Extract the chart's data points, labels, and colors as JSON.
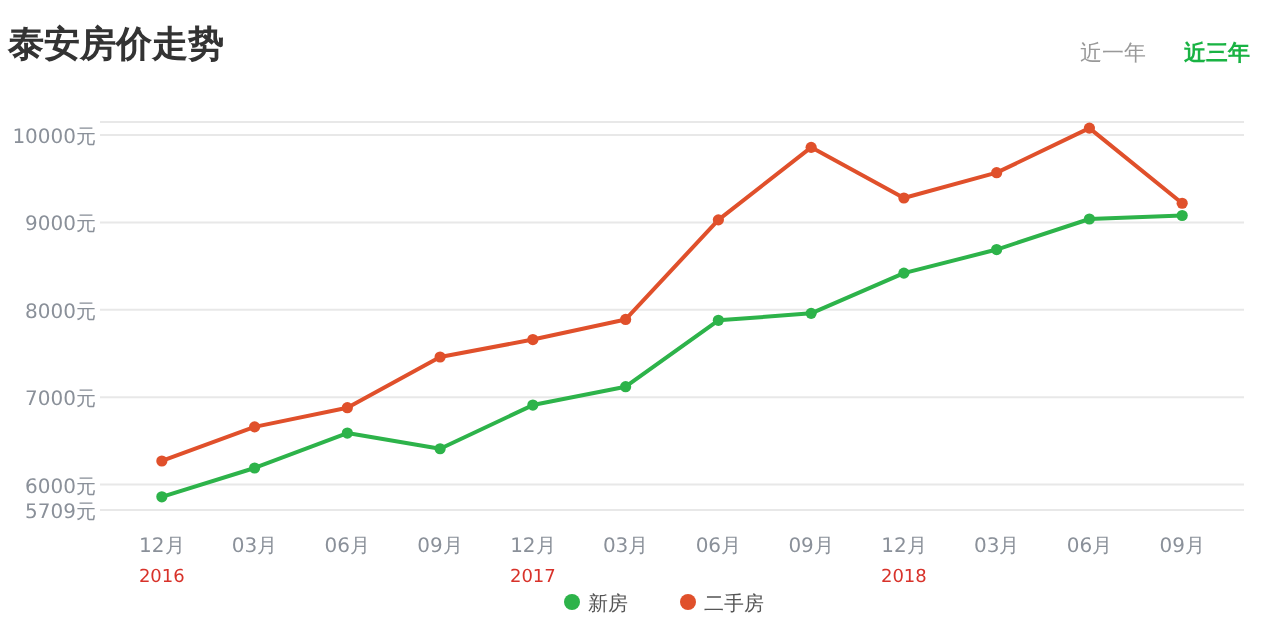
{
  "chart_data": {
    "type": "line",
    "title": "泰安房价走势",
    "x": [
      "2016-12",
      "2017-03",
      "2017-06",
      "2017-09",
      "2017-12",
      "2018-03",
      "2018-06",
      "2018-09",
      "2018-12",
      "2019-03",
      "2019-06",
      "2019-09"
    ],
    "xlim": [
      "2016-10",
      "2019-11"
    ],
    "xticks": [
      {
        "value": "2016-12",
        "label": "12月"
      },
      {
        "value": "2017-03",
        "label": "03月"
      },
      {
        "value": "2017-06",
        "label": "06月"
      },
      {
        "value": "2017-09",
        "label": "09月"
      },
      {
        "value": "2017-12",
        "label": "12月"
      },
      {
        "value": "2018-03",
        "label": "03月"
      },
      {
        "value": "2018-06",
        "label": "06月"
      },
      {
        "value": "2018-09",
        "label": "09月"
      },
      {
        "value": "2018-12",
        "label": "12月"
      },
      {
        "value": "2019-03",
        "label": "03月"
      },
      {
        "value": "2019-06",
        "label": "06月"
      },
      {
        "value": "2019-09",
        "label": "09月"
      }
    ],
    "ylim": [
      5709,
      10150
    ],
    "yticks": [
      {
        "value": 5709,
        "label": "5709元"
      },
      {
        "value": 6000,
        "label": "6000元"
      },
      {
        "value": 7000,
        "label": "7000元"
      },
      {
        "value": 8000,
        "label": "8000元"
      },
      {
        "value": 9000,
        "label": "9000元"
      },
      {
        "value": 10000,
        "label": "10000元"
      }
    ],
    "series": [
      {
        "name": "新房",
        "color": "#2db34a",
        "values": [
          5860,
          6190,
          6590,
          6410,
          6910,
          7120,
          7880,
          7960,
          8420,
          8690,
          9040,
          9080
        ]
      },
      {
        "name": "二手房",
        "color": "#e0502b",
        "values": [
          6270,
          6660,
          6880,
          7460,
          7660,
          7890,
          9030,
          9860,
          9280,
          9570,
          10080,
          9220
        ]
      }
    ],
    "annotations": [
      "2016",
      "2017",
      "2018",
      "近一年",
      "近三年"
    ],
    "marker": "circle",
    "line_style": "solid",
    "grid": "y",
    "legend": "bottom"
  }
}
